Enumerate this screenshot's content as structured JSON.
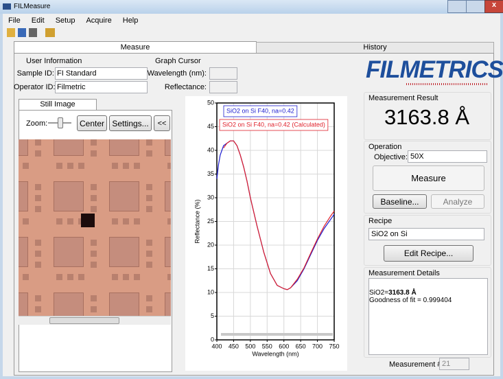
{
  "window": {
    "title": "FILMeasure"
  },
  "menu": [
    "File",
    "Edit",
    "Setup",
    "Acquire",
    "Help"
  ],
  "tabs": [
    "Measure",
    "History"
  ],
  "user_information": {
    "title": "User Information",
    "sample_id_label": "Sample ID:",
    "sample_id": "FI Standard",
    "operator_id_label": "Operator ID:",
    "operator_id": "Filmetric"
  },
  "graph_cursor": {
    "title": "Graph Cursor",
    "wavelength_label": "Wavelength (nm):",
    "reflectance_label": "Reflectance:"
  },
  "image_panel": {
    "tab": "Still Image",
    "zoom_label": "Zoom:",
    "buttons": [
      "Center",
      "Settings...",
      "<<"
    ]
  },
  "chart_data": {
    "type": "line",
    "xlabel": "Wavelength (nm)",
    "ylabel": "Reflectance (%)",
    "x": [
      400,
      405,
      410,
      415,
      420,
      430,
      440,
      450,
      460,
      470,
      480,
      490,
      500,
      520,
      540,
      560,
      580,
      600,
      610,
      620,
      640,
      660,
      680,
      700,
      720,
      740,
      750
    ],
    "series": [
      {
        "name": "SiO2 on Si F40, na=0.42",
        "color": "#1c1cd0",
        "values": [
          34,
          37,
          39,
          40,
          41,
          41.5,
          42,
          42,
          41,
          39,
          36.5,
          33.5,
          30,
          24,
          18.5,
          14,
          11.5,
          10.8,
          10.6,
          11,
          12.5,
          15,
          18,
          21,
          23.5,
          25.5,
          26.5
        ]
      },
      {
        "name": "SiO2 on Si F40, na=0.42 (Calculated)",
        "color": "#e0202a",
        "values": [
          null,
          null,
          null,
          null,
          40.5,
          41.5,
          42,
          42,
          41,
          39,
          36.5,
          33.5,
          30,
          24,
          18.5,
          14,
          11.5,
          10.8,
          10.6,
          11,
          12.8,
          15.2,
          18.3,
          21.3,
          24,
          26.2,
          27.2
        ]
      }
    ],
    "xlim": [
      400,
      750
    ],
    "xticks": [
      400,
      450,
      500,
      550,
      600,
      650,
      700,
      750
    ],
    "ylim": [
      0,
      50
    ],
    "yticks": [
      0,
      5,
      10,
      15,
      20,
      25,
      30,
      35,
      40,
      45,
      50
    ],
    "grid": true
  },
  "logo": "FILMETRICS",
  "result": {
    "title": "Measurement Result",
    "value": "3163.8 Å"
  },
  "operation": {
    "title": "Operation",
    "objective_label": "Objective:",
    "objective": "50X",
    "measure": "Measure",
    "baseline": "Baseline...",
    "analyze": "Analyze"
  },
  "recipe": {
    "title": "Recipe",
    "name": "SiO2 on Si",
    "edit": "Edit Recipe..."
  },
  "details": {
    "title": "Measurement Details",
    "film": "SiO2=",
    "thickness": "3163.8 Å",
    "fit": "Goodness of fit = 0.999404"
  },
  "measurement_number": {
    "label": "Measurement #",
    "value": "21"
  }
}
